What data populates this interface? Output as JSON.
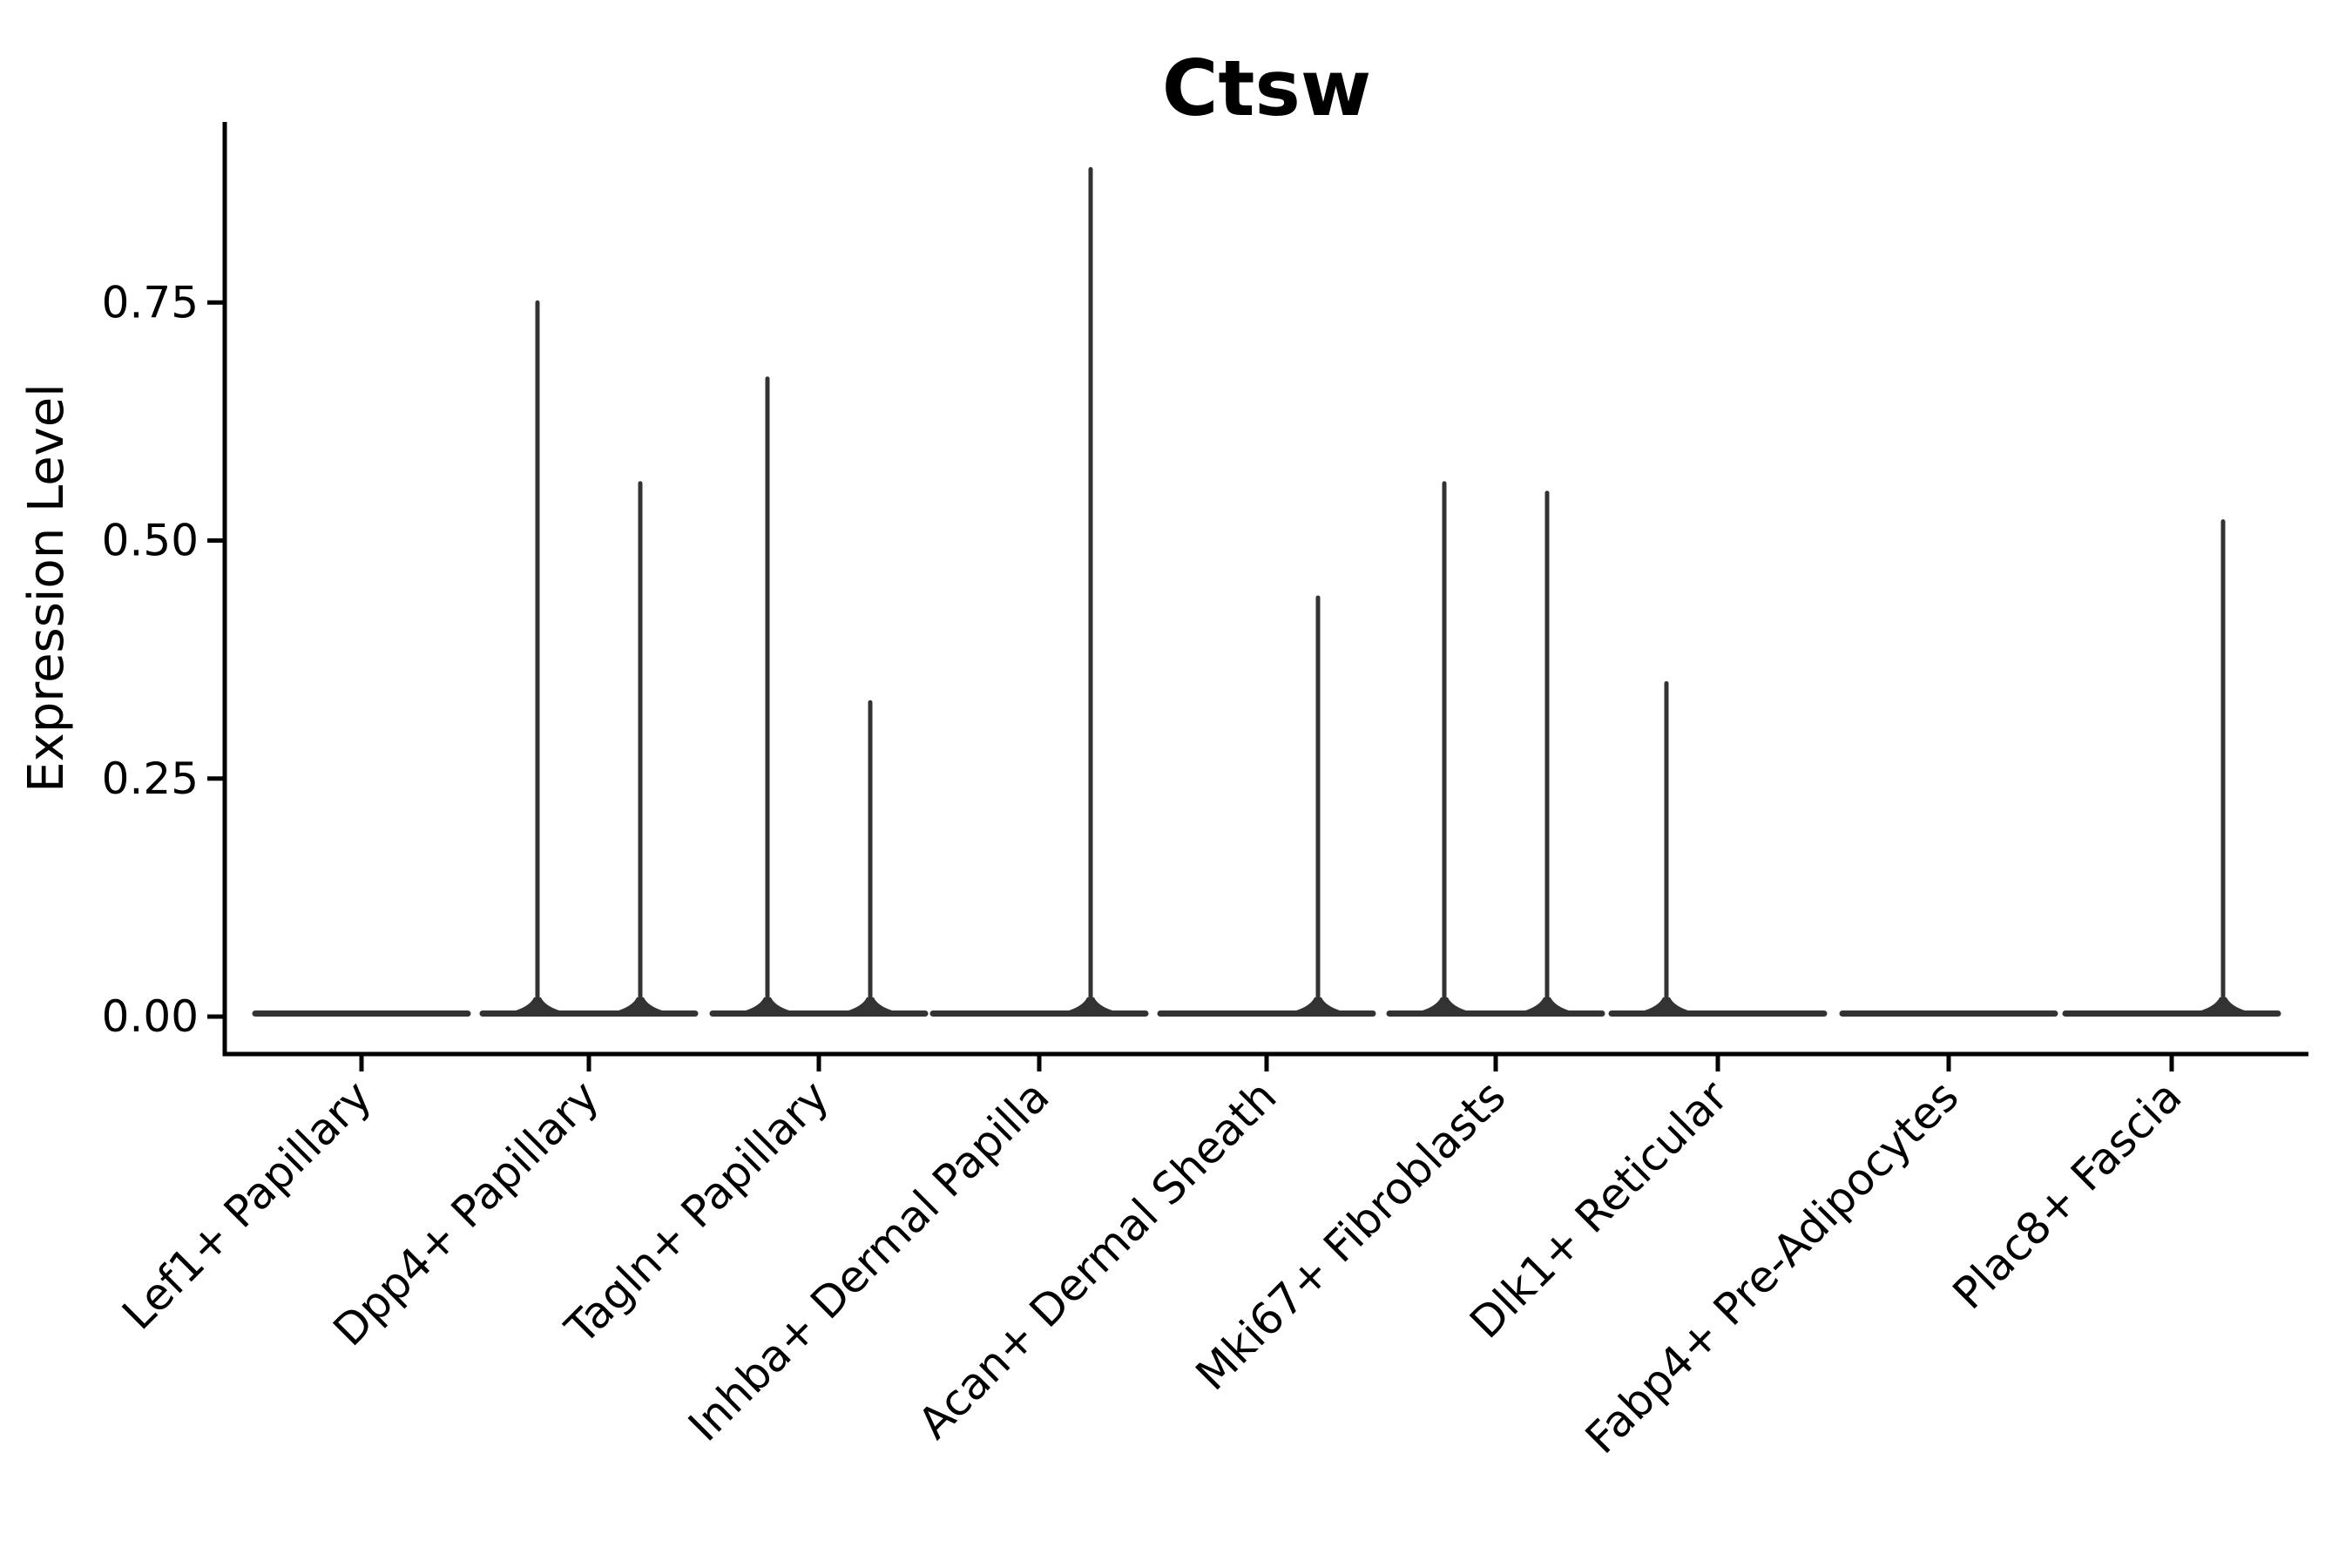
{
  "chart_data": {
    "type": "violin",
    "title": "Ctsw",
    "xlabel": "",
    "ylabel": "Expression Level",
    "categories": [
      "Lef1+ Papillary",
      "Dpp4+ Papillary",
      "Tagln+ Papillary",
      "Inhba+ Dermal Papilla",
      "Acan+ Dermal Sheath",
      "Mki67+ Fibroblasts",
      "Dlk1+ Reticular",
      "Fabp4+ Pre-Adipocytes",
      "Plac8+ Fascia"
    ],
    "ytick_labels": [
      "0.00",
      "0.25",
      "0.50",
      "0.75"
    ],
    "ytick_values": [
      0,
      0.25,
      0.5,
      0.75
    ],
    "ylim": [
      -0.04,
      0.94
    ],
    "grid": false,
    "legend": false,
    "violins": [
      {
        "category": "Lef1+ Papillary",
        "spikes": []
      },
      {
        "category": "Dpp4+ Papillary",
        "spikes": [
          {
            "side": "left",
            "value": 0.75
          },
          {
            "side": "right",
            "value": 0.56
          }
        ]
      },
      {
        "category": "Tagln+ Papillary",
        "spikes": [
          {
            "side": "left",
            "value": 0.67
          },
          {
            "side": "right",
            "value": 0.33
          }
        ]
      },
      {
        "category": "Inhba+ Dermal Papilla",
        "spikes": [
          {
            "side": "right",
            "value": 0.89
          }
        ]
      },
      {
        "category": "Acan+ Dermal Sheath",
        "spikes": [
          {
            "side": "right",
            "value": 0.44
          }
        ]
      },
      {
        "category": "Mki67+ Fibroblasts",
        "spikes": [
          {
            "side": "left",
            "value": 0.56
          },
          {
            "side": "right",
            "value": 0.55
          }
        ]
      },
      {
        "category": "Dlk1+ Reticular",
        "spikes": [
          {
            "side": "left",
            "value": 0.35
          }
        ]
      },
      {
        "category": "Fabp4+ Pre-Adipocytes",
        "spikes": []
      },
      {
        "category": "Plac8+ Fascia",
        "spikes": [
          {
            "side": "right",
            "value": 0.52
          }
        ]
      }
    ],
    "colors": {
      "violin": "#333333",
      "axis": "#000000",
      "text": "#000000",
      "background": "#ffffff"
    }
  }
}
